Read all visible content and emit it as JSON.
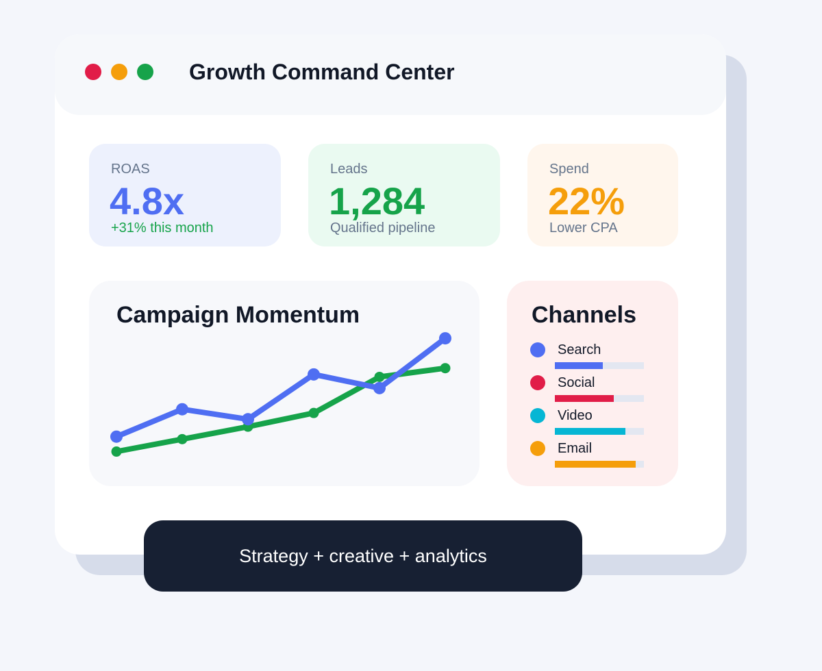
{
  "window": {
    "title": "Growth Command Center",
    "controls": [
      "close-dot",
      "minimize-dot",
      "maximize-dot"
    ]
  },
  "kpis": {
    "roas": {
      "label": "ROAS",
      "value": "4.8x",
      "sub": "+31% this month"
    },
    "leads": {
      "label": "Leads",
      "value": "1,284",
      "sub": "Qualified pipeline"
    },
    "spend": {
      "label": "Spend",
      "value": "22%",
      "sub": "Lower CPA"
    }
  },
  "momentum": {
    "title": "Campaign Momentum"
  },
  "chart_data": {
    "type": "line",
    "title": "Campaign Momentum",
    "xlabel": "",
    "ylabel": "",
    "grid": false,
    "legend": "none",
    "series": [
      {
        "color": "#4f6ef2",
        "points": [
          [
            1,
            2.6
          ],
          [
            2,
            4.8
          ],
          [
            3,
            4.0
          ],
          [
            4,
            7.6
          ],
          [
            5,
            6.5
          ],
          [
            6,
            10.5
          ]
        ]
      },
      {
        "color": "#16a34a",
        "points": [
          [
            1,
            1.4
          ],
          [
            2,
            2.4
          ],
          [
            3,
            3.4
          ],
          [
            4,
            4.5
          ],
          [
            5,
            7.4
          ],
          [
            6,
            8.1
          ]
        ]
      }
    ],
    "xlim": [
      1,
      6
    ],
    "ylim": [
      0,
      11
    ]
  },
  "channels": {
    "title": "Channels",
    "items": [
      {
        "label": "Search",
        "share": 0.54,
        "color": "#4f6ef2"
      },
      {
        "label": "Social",
        "share": 0.66,
        "color": "#e11d48"
      },
      {
        "label": "Video",
        "share": 0.79,
        "color": "#06b6d4"
      },
      {
        "label": "Email",
        "share": 0.91,
        "color": "#f59e0b"
      }
    ]
  },
  "footer": {
    "text": "Strategy + creative + analytics"
  }
}
